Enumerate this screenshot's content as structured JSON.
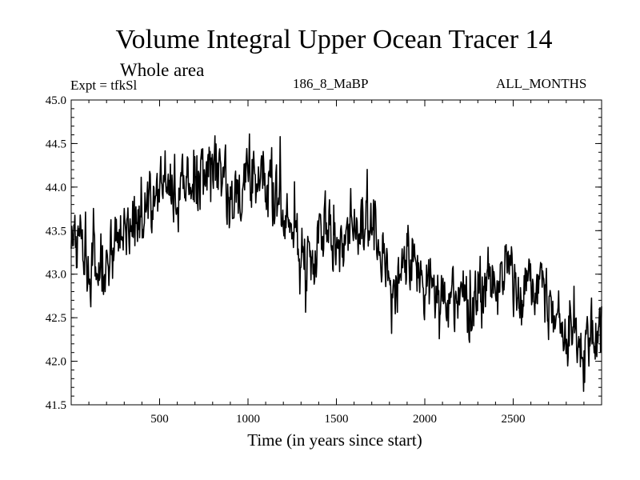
{
  "header": {
    "title": "Volume Integral Upper Ocean Tracer 14",
    "subtitle": "Whole area",
    "experiment": "Expt = tfkSl",
    "run_label": "186_8_MaBP",
    "months_label": "ALL_MONTHS"
  },
  "chart_data": {
    "type": "line",
    "title": "Volume Integral Upper Ocean Tracer 14",
    "subtitle": "Whole area",
    "xlabel": "Time (in years since start)",
    "ylabel": "",
    "xlim": [
      0,
      3000
    ],
    "ylim": [
      41.5,
      45.0
    ],
    "x_ticks": [
      500,
      1000,
      1500,
      2000,
      2500
    ],
    "x_tick_labels": [
      "500",
      "1000",
      "1500",
      "2000",
      "2500"
    ],
    "y_ticks": [
      41.5,
      42.0,
      42.5,
      43.0,
      43.5,
      44.0,
      44.5,
      45.0
    ],
    "y_tick_labels": [
      "41.5",
      "42.0",
      "42.5",
      "43.0",
      "43.5",
      "44.0",
      "44.5",
      "45.0"
    ],
    "grid": false,
    "series": [
      {
        "name": "Volume Integral Upper Ocean Tracer 14",
        "anchor_x": [
          0,
          30,
          60,
          90,
          120,
          160,
          200,
          250,
          300,
          350,
          400,
          450,
          500,
          550,
          600,
          650,
          700,
          750,
          800,
          850,
          900,
          950,
          1000,
          1050,
          1100,
          1150,
          1200,
          1250,
          1300,
          1350,
          1400,
          1450,
          1500,
          1550,
          1600,
          1650,
          1700,
          1750,
          1800,
          1850,
          1900,
          1950,
          2000,
          2050,
          2100,
          2150,
          2200,
          2250,
          2300,
          2350,
          2400,
          2450,
          2500,
          2550,
          2600,
          2650,
          2700,
          2750,
          2800,
          2850,
          2900,
          2950,
          3000
        ],
        "anchor_y": [
          43.3,
          43.4,
          43.2,
          43.0,
          43.1,
          43.0,
          43.2,
          43.3,
          43.6,
          43.7,
          43.6,
          43.8,
          44.0,
          44.1,
          43.9,
          44.0,
          44.1,
          44.1,
          44.2,
          44.1,
          43.9,
          43.8,
          44.1,
          44.2,
          44.1,
          43.9,
          43.8,
          43.6,
          43.3,
          43.2,
          43.4,
          43.5,
          43.2,
          43.4,
          43.6,
          43.6,
          43.7,
          43.2,
          42.9,
          43.0,
          43.2,
          43.1,
          43.0,
          42.8,
          42.7,
          42.8,
          42.7,
          42.6,
          42.7,
          42.9,
          42.8,
          43.0,
          42.9,
          42.8,
          42.9,
          42.7,
          42.6,
          42.4,
          42.3,
          42.2,
          42.1,
          42.2,
          42.4
        ],
        "values_sampling": "one value per model year, 0 to 3000, noisy annual variability of about +/-0.35 around the anchor curve",
        "color": "#000000"
      }
    ]
  }
}
